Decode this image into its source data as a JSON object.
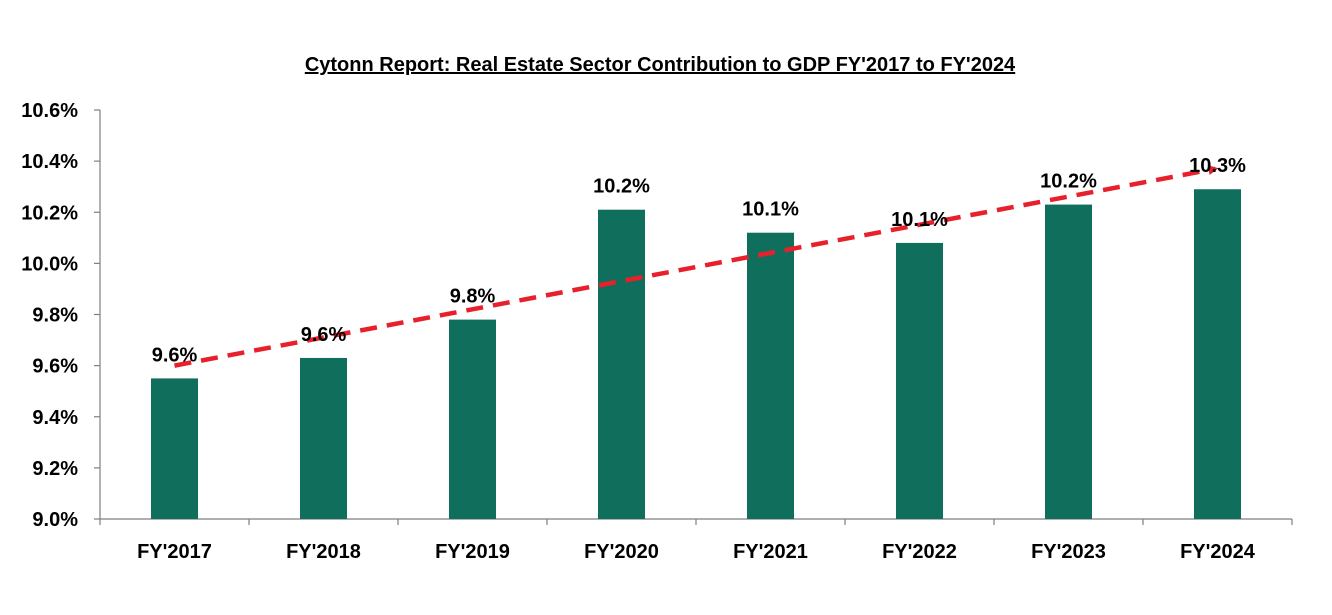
{
  "chart_data": {
    "type": "bar",
    "title": "Cytonn Report: Real Estate Sector Contribution to GDP FY'2017 to FY'2024",
    "xlabel": "",
    "ylabel": "",
    "categories": [
      "FY'2017",
      "FY'2018",
      "FY'2019",
      "FY'2020",
      "FY'2021",
      "FY'2022",
      "FY'2023",
      "FY'2024"
    ],
    "values": [
      9.55,
      9.63,
      9.78,
      10.21,
      10.12,
      10.08,
      10.23,
      10.29
    ],
    "data_labels": [
      "9.6%",
      "9.6%",
      "9.8%",
      "10.2%",
      "10.1%",
      "10.1%",
      "10.2%",
      "10.3%"
    ],
    "ylim": [
      9.0,
      10.6
    ],
    "y_ticks": [
      9.0,
      9.2,
      9.4,
      9.6,
      9.8,
      10.0,
      10.2,
      10.4,
      10.6
    ],
    "y_tick_labels": [
      "9.0%",
      "9.2%",
      "9.4%",
      "9.6%",
      "9.8%",
      "10.0%",
      "10.2%",
      "10.4%",
      "10.6%"
    ],
    "grid": false,
    "legend": "none",
    "trendline": {
      "style": "dashed-arrow",
      "start": {
        "category": "FY'2017",
        "value": 9.6
      },
      "end": {
        "category": "FY'2024",
        "value": 10.37
      }
    },
    "colors": {
      "bar": "#106F5C",
      "trendline": "#E8202C",
      "axis": "#7F7F7F",
      "text": "#000000"
    }
  }
}
